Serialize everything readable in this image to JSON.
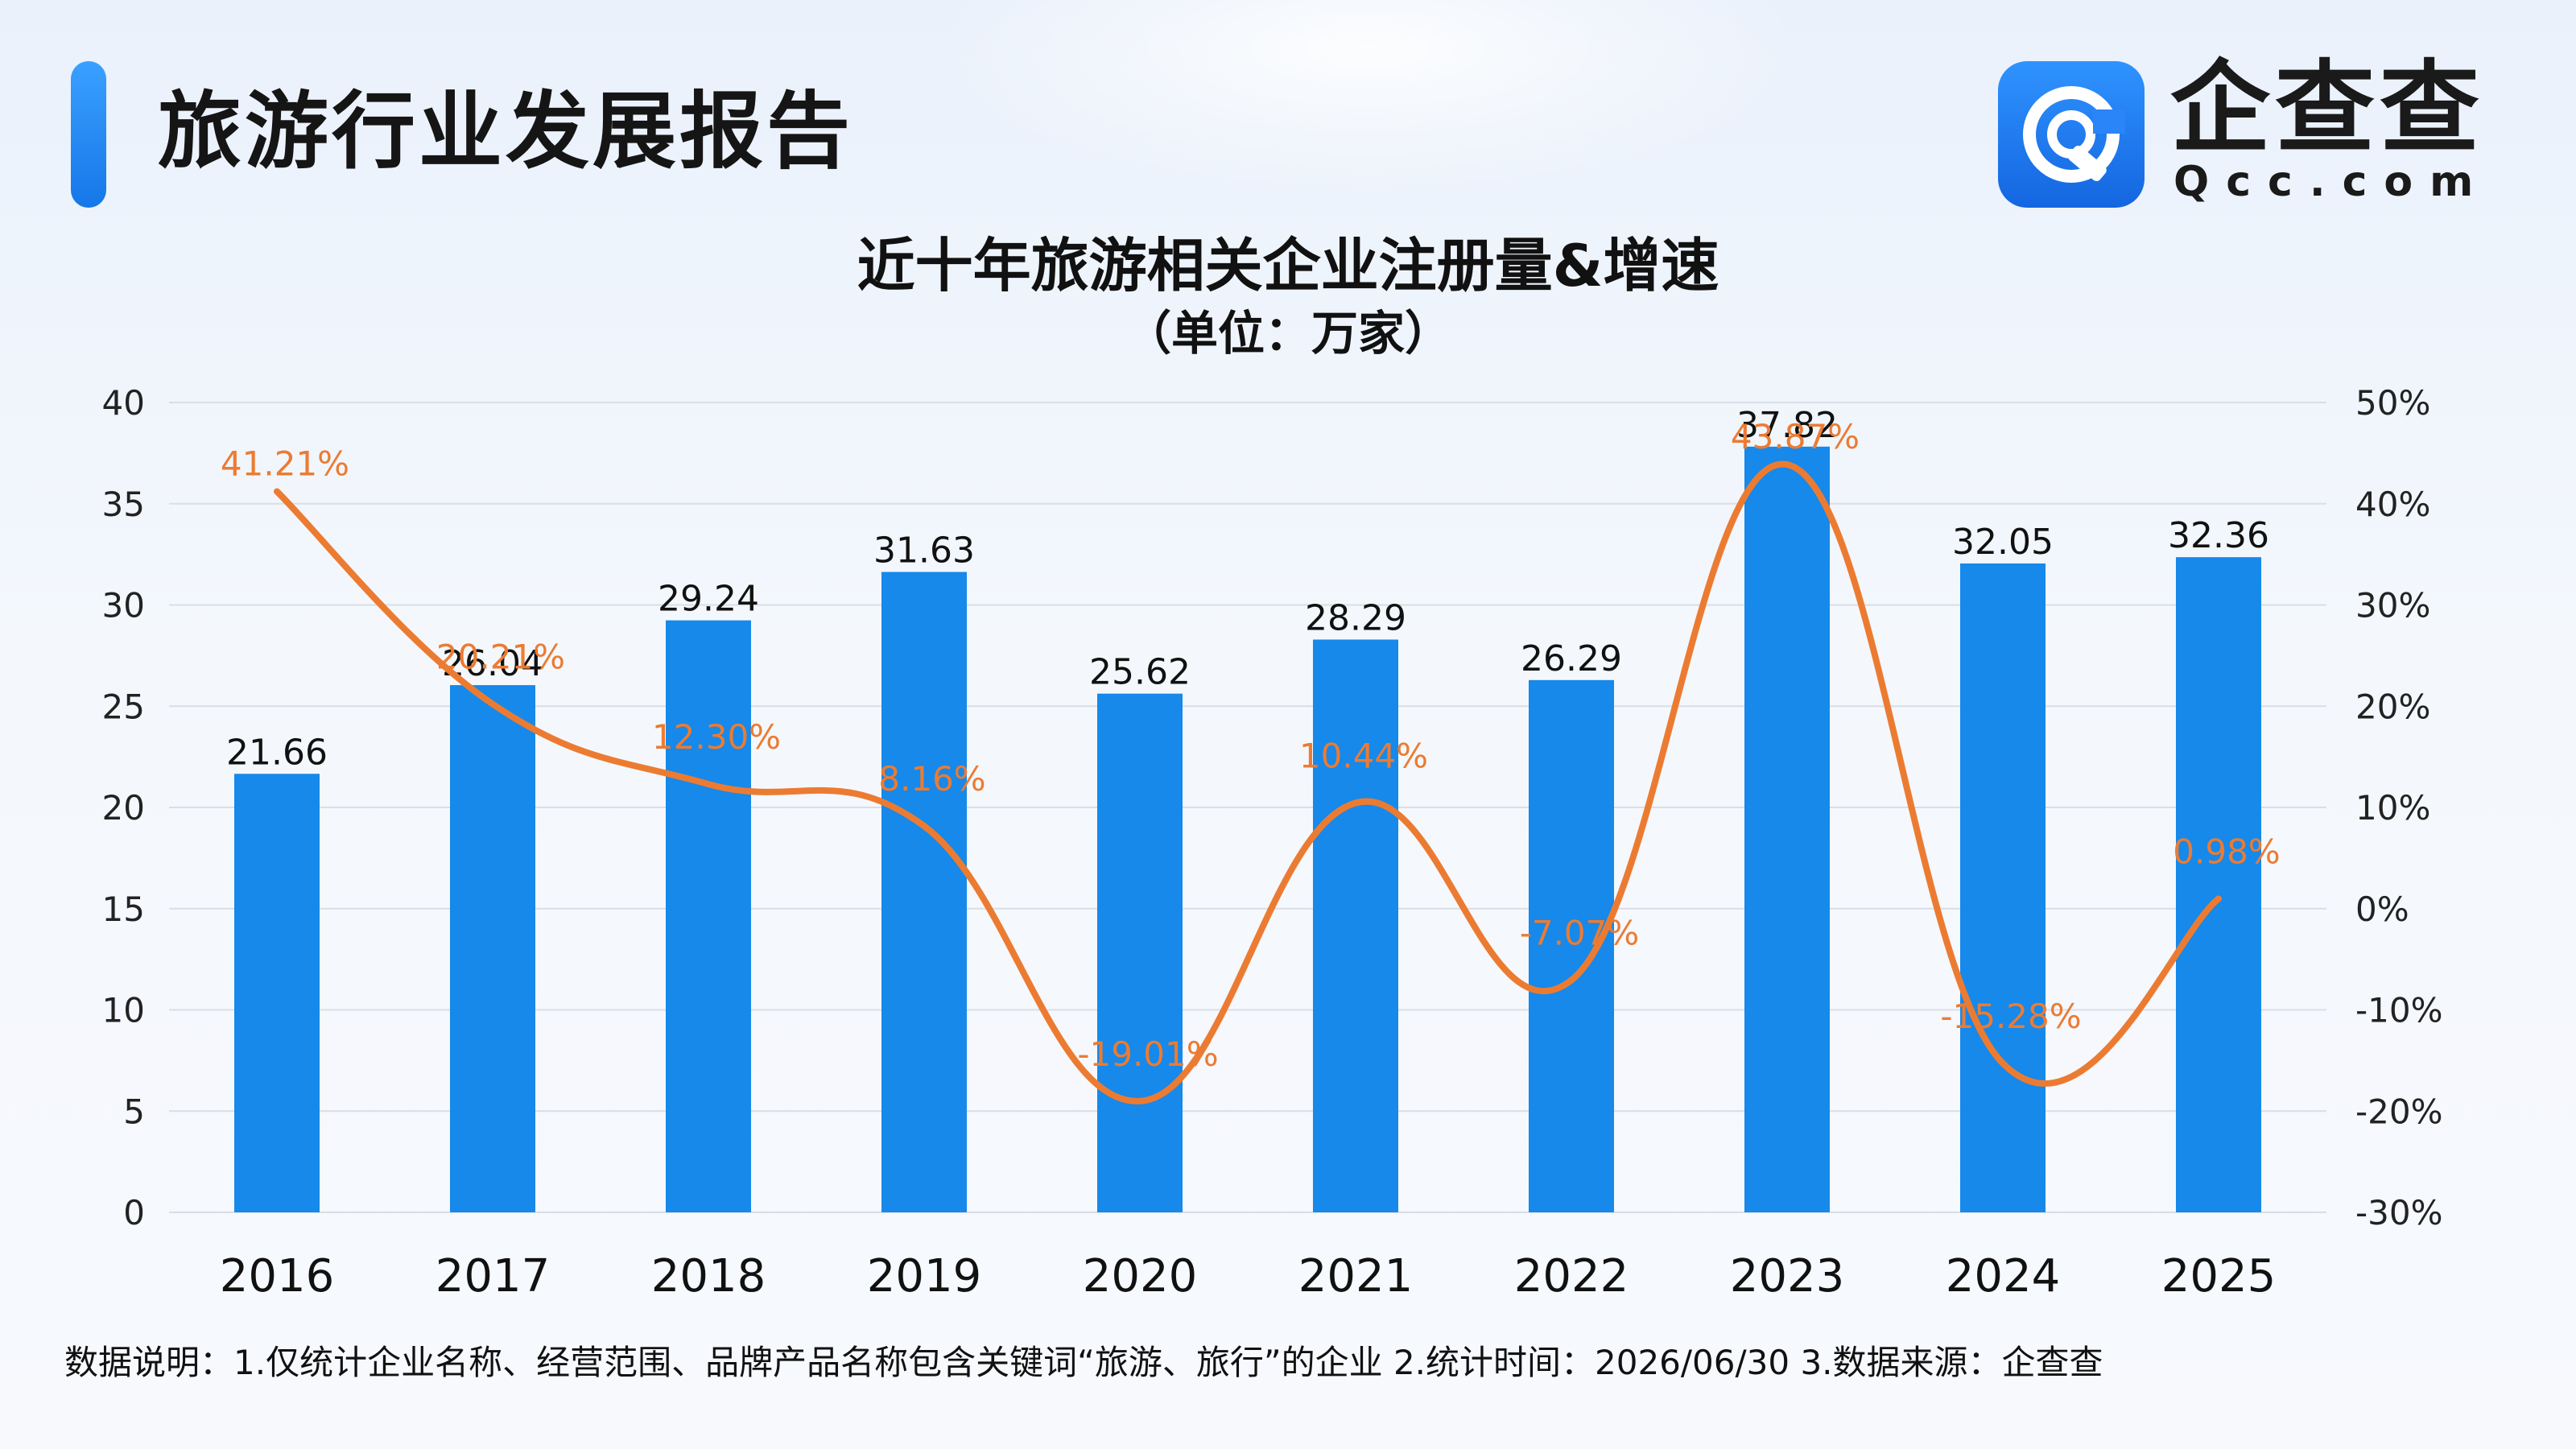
{
  "header": {
    "report_title": "旅游行业发展报告",
    "logo_text": "企查查",
    "logo_domain": "Qcc.com",
    "logo_icon": "qcc-logo-icon"
  },
  "colors": {
    "accent": "#1677e8",
    "bar": "#1689ea",
    "line": "#ec7b32",
    "grid": "#d9dee6"
  },
  "chart_data": {
    "type": "bar",
    "title": "近十年旅游相关企业注册量&增速",
    "subtitle": "（单位：万家）",
    "categories": [
      "2016",
      "2017",
      "2018",
      "2019",
      "2020",
      "2021",
      "2022",
      "2023",
      "2024",
      "2025"
    ],
    "series": [
      {
        "type": "bar",
        "axis": "left",
        "values": [
          21.66,
          26.04,
          29.24,
          31.63,
          25.62,
          28.29,
          26.29,
          37.82,
          32.05,
          32.36
        ],
        "labels": [
          "21.66",
          "26.04",
          "29.24",
          "31.63",
          "25.62",
          "28.29",
          "26.29",
          "37.82",
          "32.05",
          "32.36"
        ]
      },
      {
        "type": "line",
        "axis": "right",
        "values": [
          41.21,
          20.21,
          12.3,
          8.16,
          -19.01,
          10.44,
          -7.07,
          43.87,
          -15.28,
          0.98
        ],
        "labels": [
          "41.21%",
          "20.21%",
          "12.30%",
          "8.16%",
          "-19.01%",
          "10.44%",
          "-7.07%",
          "43.87%",
          "-15.28%",
          "0.98%"
        ]
      }
    ],
    "y_left": {
      "min": 0,
      "max": 40,
      "ticks": [
        "0",
        "5",
        "10",
        "15",
        "20",
        "25",
        "30",
        "35",
        "40"
      ]
    },
    "y_right": {
      "min": -30,
      "max": 50,
      "ticks": [
        "-30%",
        "-20%",
        "-10%",
        "0%",
        "10%",
        "20%",
        "30%",
        "40%",
        "50%"
      ]
    },
    "grid": true,
    "smooth_line": true
  },
  "footnote": "数据说明：1.仅统计企业名称、经营范围、品牌产品名称包含关键词“旅游、旅行”的企业   2.统计时间：2026/06/30    3.数据来源：企查查"
}
